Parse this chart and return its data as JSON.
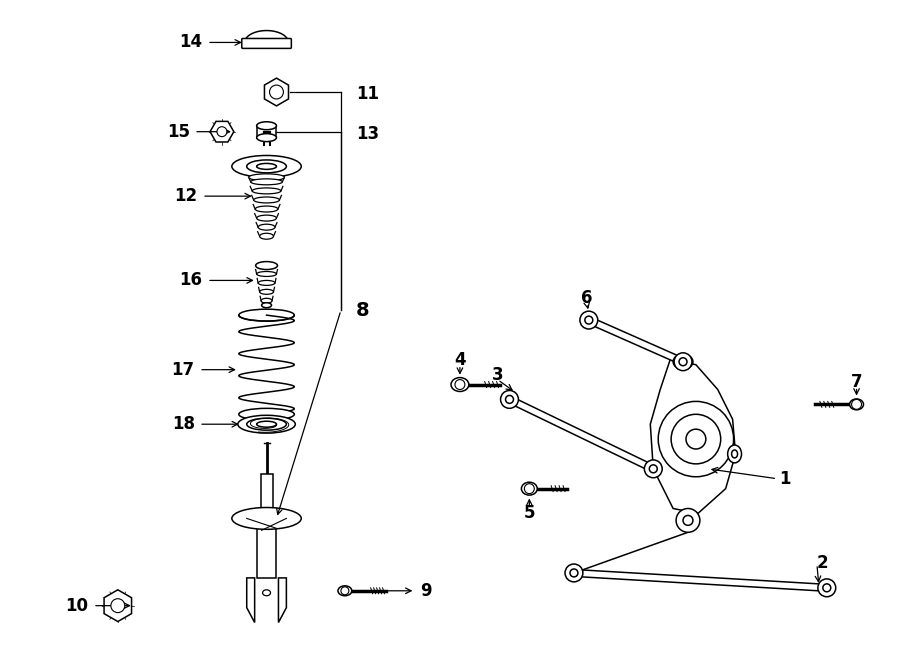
{
  "bg_color": "#ffffff",
  "line_color": "#000000",
  "figsize": [
    9.0,
    6.61
  ],
  "dpi": 100,
  "lw": 1.1
}
